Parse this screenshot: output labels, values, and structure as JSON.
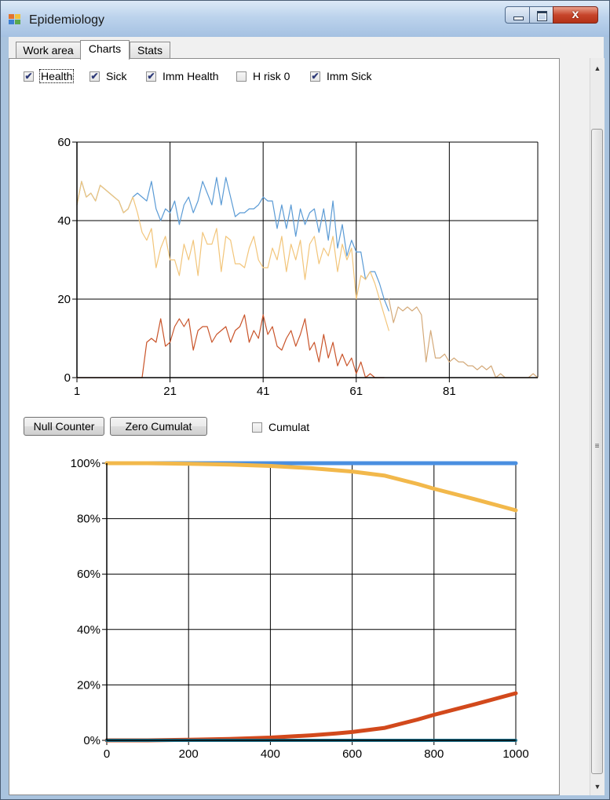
{
  "window": {
    "title": "Epidemiology",
    "controls": {
      "minimize": "minimize",
      "maximize": "maximize",
      "close": "x"
    }
  },
  "tabs": [
    {
      "label": "Work area",
      "selected": false
    },
    {
      "label": "Charts",
      "selected": true
    },
    {
      "label": "Stats",
      "selected": false
    }
  ],
  "toggles": [
    {
      "label": "Health",
      "checked": true
    },
    {
      "label": "Sick",
      "checked": true
    },
    {
      "label": "Imm Health",
      "checked": true
    },
    {
      "label": "H risk 0",
      "checked": false
    },
    {
      "label": "Imm Sick",
      "checked": true
    }
  ],
  "controls": {
    "null_counter": "Null Counter",
    "zero_cumulat": "Zero Cumulat",
    "cumulat_label": "Cumulat",
    "cumulat_checked": false
  },
  "colors": {
    "blue": "#5b9bd5",
    "orange": "#f2b84b",
    "red": "#cf4f1f",
    "teal": "#1d6f8a"
  },
  "chart_data": [
    {
      "type": "line",
      "x_ticks": [
        1,
        21,
        41,
        61,
        81
      ],
      "y_ticks": [
        0,
        20,
        40,
        60
      ],
      "xlim": [
        1,
        100
      ],
      "ylim": [
        0,
        60
      ],
      "grid": true,
      "series": [
        {
          "color": "#5b9bd5",
          "width": 1.2,
          "x": [
            1,
            2,
            3,
            4,
            5,
            6,
            7,
            8,
            9,
            10,
            11,
            12,
            13,
            14,
            15,
            16,
            17,
            18,
            19,
            20,
            21,
            22,
            23,
            24,
            25,
            26,
            27,
            28,
            29,
            30,
            31,
            32,
            33,
            34,
            35,
            36,
            37,
            38,
            39,
            40,
            41,
            42,
            43,
            44,
            45,
            46,
            47,
            48,
            49,
            50,
            51,
            52,
            53,
            54,
            55,
            56,
            57,
            58,
            59,
            60,
            61,
            62,
            63,
            64,
            65,
            66,
            67,
            68
          ],
          "y": [
            44,
            50,
            46,
            47,
            45,
            49,
            48,
            47,
            46,
            45,
            42,
            43,
            46,
            47,
            46,
            45,
            50,
            43,
            40,
            43,
            42,
            45,
            39,
            44,
            46,
            42,
            45,
            50,
            47,
            44,
            51,
            44,
            51,
            46,
            41,
            42,
            42,
            43,
            43,
            44,
            46,
            45,
            45,
            38,
            44,
            38,
            44,
            36,
            43,
            39,
            42,
            43,
            37,
            43,
            35,
            45,
            33,
            39,
            31,
            35,
            32,
            32,
            25,
            27,
            27,
            24,
            20,
            17
          ]
        },
        {
          "color": "#f2c57a",
          "width": 1.2,
          "x": [
            1,
            2,
            3,
            4,
            5,
            6,
            7,
            8,
            9,
            10,
            11,
            12,
            13,
            14,
            15,
            16,
            17,
            18,
            19,
            20,
            21,
            22,
            23,
            24,
            25,
            26,
            27,
            28,
            29,
            30,
            31,
            32,
            33,
            34,
            35,
            36,
            37,
            38,
            39,
            40,
            41,
            42,
            43,
            44,
            45,
            46,
            47,
            48,
            49,
            50,
            51,
            52,
            53,
            54,
            55,
            56,
            57,
            58,
            59,
            60,
            61,
            62,
            63,
            64,
            65,
            66,
            67,
            68
          ],
          "y": [
            44,
            50,
            46,
            47,
            45,
            49,
            48,
            47,
            46,
            45,
            42,
            43,
            46,
            42,
            37,
            35,
            38,
            28,
            33,
            36,
            30,
            30,
            26,
            34,
            30,
            35,
            26,
            37,
            34,
            34,
            38,
            27,
            36,
            35,
            29,
            29,
            28,
            33,
            36,
            30,
            28,
            28,
            33,
            30,
            36,
            27,
            34,
            30,
            35,
            25,
            34,
            36,
            29,
            33,
            31,
            36,
            27,
            34,
            30,
            33,
            20,
            26,
            25,
            27,
            24,
            20,
            16,
            12
          ]
        },
        {
          "color": "#d4aa7a",
          "width": 1.2,
          "x": [
            68,
            69,
            70,
            71,
            72,
            73,
            74,
            75,
            76,
            77,
            78,
            79,
            80,
            81,
            82,
            83,
            84,
            85,
            86,
            87,
            88,
            89,
            90,
            91,
            92,
            93,
            94,
            95,
            96,
            97,
            98,
            99,
            100
          ],
          "y": [
            20,
            14,
            18,
            17,
            18,
            17,
            18,
            16,
            4,
            12,
            5,
            5,
            6,
            4,
            5,
            4,
            4,
            3,
            3,
            2,
            3,
            2,
            3,
            0,
            1,
            0,
            0,
            0,
            0,
            0,
            0,
            1,
            0
          ]
        },
        {
          "color": "#c9542a",
          "width": 1.2,
          "x": [
            1,
            2,
            3,
            4,
            5,
            6,
            7,
            8,
            9,
            10,
            11,
            12,
            13,
            14,
            15,
            16,
            17,
            18,
            19,
            20,
            21,
            22,
            23,
            24,
            25,
            26,
            27,
            28,
            29,
            30,
            31,
            32,
            33,
            34,
            35,
            36,
            37,
            38,
            39,
            40,
            41,
            42,
            43,
            44,
            45,
            46,
            47,
            48,
            49,
            50,
            51,
            52,
            53,
            54,
            55,
            56,
            57,
            58,
            59,
            60,
            61,
            62,
            63,
            64,
            65,
            66,
            67
          ],
          "y": [
            0,
            0,
            0,
            0,
            0,
            0,
            0,
            0,
            0,
            0,
            0,
            0,
            0,
            0,
            0,
            9,
            10,
            9,
            15,
            8,
            9,
            13,
            15,
            13,
            15,
            7,
            12,
            13,
            13,
            9,
            11,
            12,
            13,
            9,
            12,
            13,
            16,
            9,
            12,
            10,
            16,
            11,
            13,
            8,
            7,
            10,
            12,
            8,
            11,
            15,
            7,
            9,
            4,
            11,
            5,
            9,
            3,
            6,
            3,
            5,
            1,
            4,
            0,
            1,
            0,
            0,
            0
          ]
        }
      ]
    },
    {
      "type": "line",
      "x_ticks": [
        0,
        200,
        400,
        600,
        800,
        1000
      ],
      "y_ticks": [
        "0%",
        "20%",
        "40%",
        "60%",
        "80%",
        "100%"
      ],
      "xlim": [
        0,
        1000
      ],
      "ylim": [
        0,
        100
      ],
      "grid": true,
      "series": [
        {
          "color": "#4a8fe0",
          "width": 5,
          "x": [
            0,
            1000
          ],
          "y": [
            100,
            100
          ]
        },
        {
          "color": "#f2b84b",
          "width": 5,
          "x": [
            0,
            100,
            200,
            300,
            400,
            500,
            600,
            680,
            760,
            800,
            900,
            1000
          ],
          "y": [
            100,
            100,
            99.8,
            99.5,
            99,
            98.2,
            97,
            95.5,
            92.5,
            90.8,
            87,
            83
          ]
        },
        {
          "color": "#d2491c",
          "width": 5,
          "x": [
            0,
            100,
            200,
            300,
            400,
            500,
            560,
            600,
            680,
            760,
            800,
            900,
            1000
          ],
          "y": [
            0,
            0,
            0.2,
            0.5,
            1,
            1.8,
            2.5,
            3,
            4.5,
            7.5,
            9.2,
            13,
            17
          ]
        },
        {
          "color": "#1d6f8a",
          "width": 4,
          "x": [
            0,
            1000
          ],
          "y": [
            0,
            0
          ]
        }
      ]
    }
  ]
}
